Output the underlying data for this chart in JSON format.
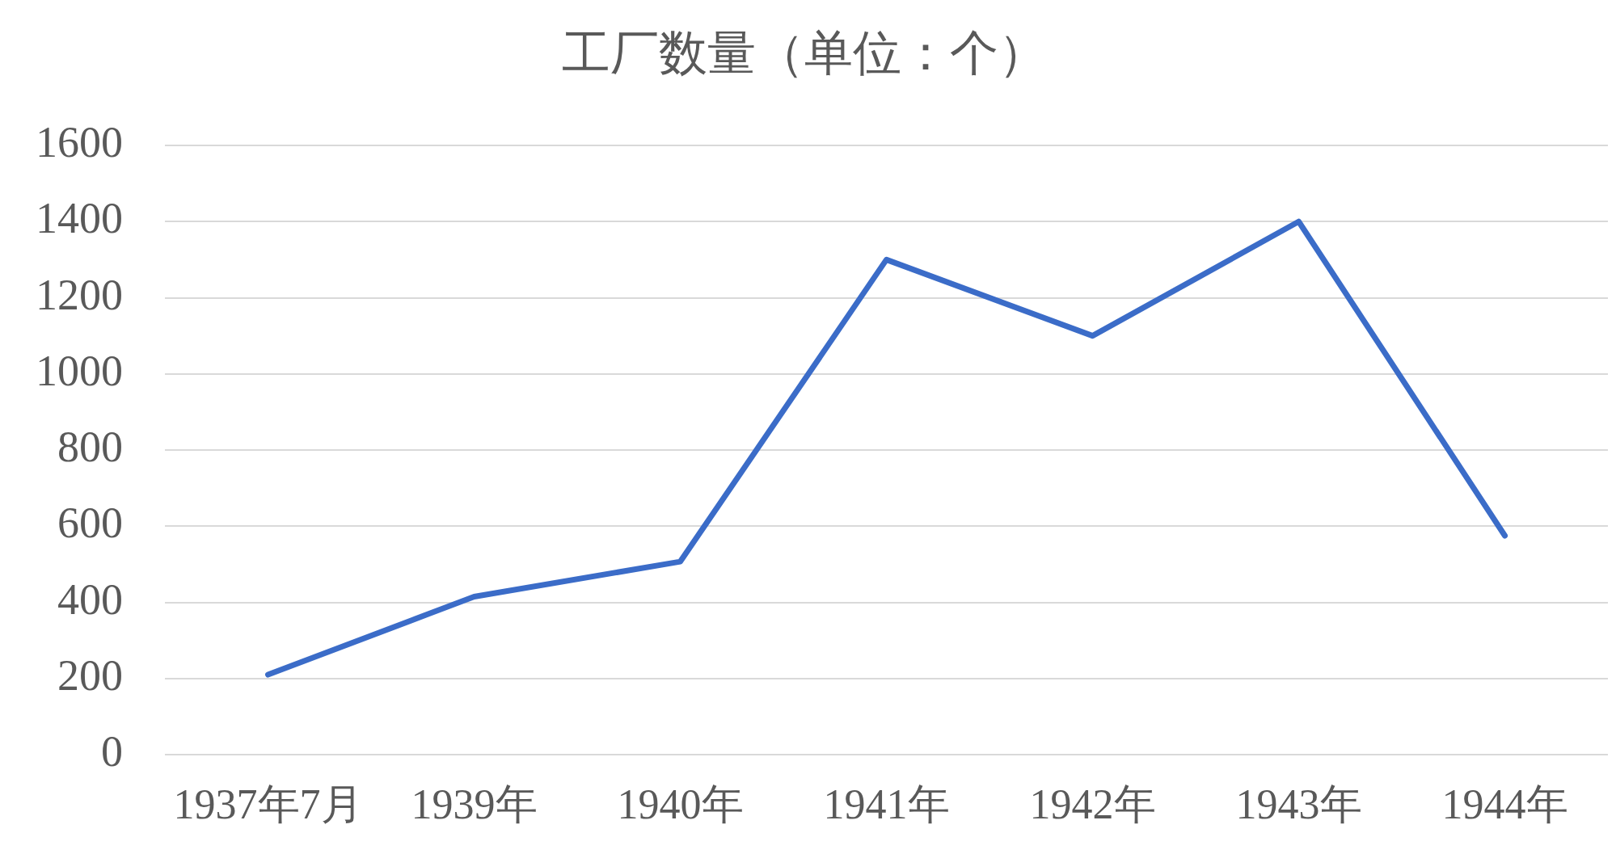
{
  "chart_data": {
    "type": "line",
    "title": "工厂数量（单位：个）",
    "categories": [
      "1937年7月",
      "1939年",
      "1940年",
      "1941年",
      "1942年",
      "1943年",
      "1944年"
    ],
    "values": [
      210,
      415,
      507,
      1300,
      1100,
      1400,
      575
    ],
    "color": "#3b6cc8",
    "ylim": [
      0,
      1600
    ],
    "yticks": [
      0,
      200,
      400,
      600,
      800,
      1000,
      1200,
      1400,
      1600
    ],
    "grid": "y",
    "marker": "none"
  }
}
